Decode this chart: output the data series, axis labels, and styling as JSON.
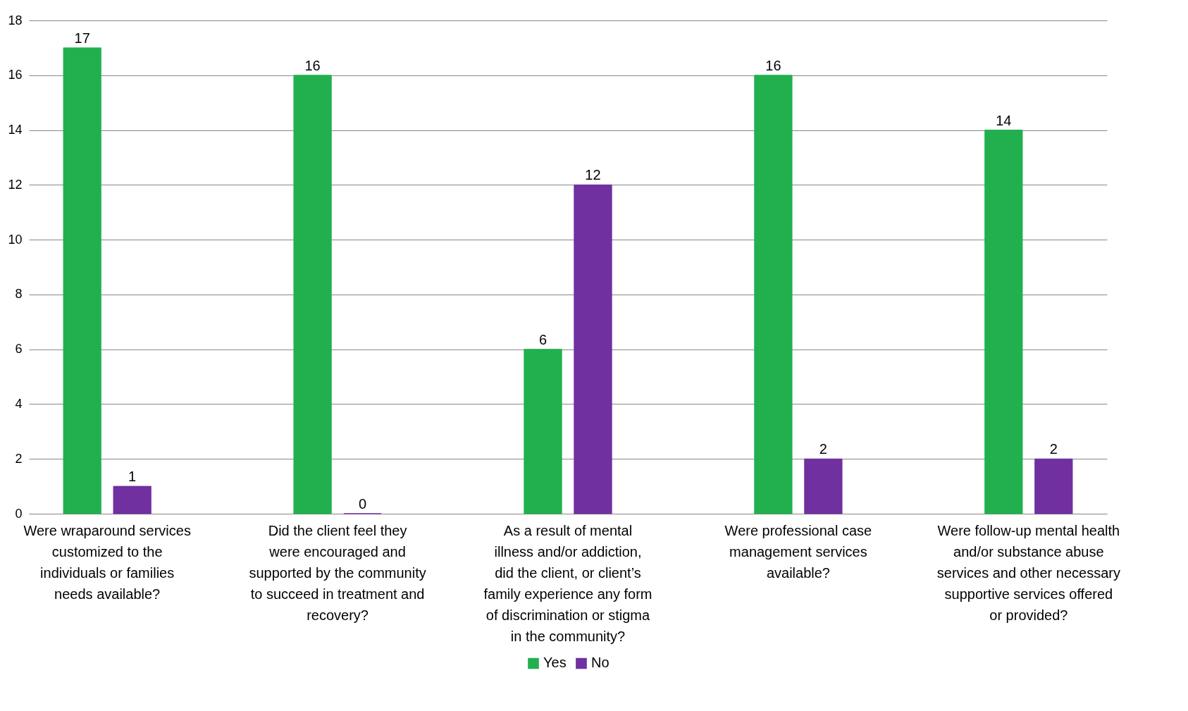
{
  "chart_data": {
    "type": "bar",
    "categories": [
      "Were wraparound services customized to the individuals or families needs available?",
      "Did the client feel they were encouraged and supported by the community to succeed in treatment and recovery?",
      "As a result of mental illness and/or addiction, did the client, or client’s family experience any form of discrimination or stigma in the community?",
      "Were professional case management services available?",
      "Were follow-up mental health and/or substance abuse services and other necessary supportive services offered or provided?"
    ],
    "series": [
      {
        "name": "Yes",
        "color": "#22b04f",
        "values": [
          17,
          16,
          6,
          16,
          14
        ]
      },
      {
        "name": "No",
        "color": "#7030a0",
        "values": [
          1,
          0,
          12,
          2,
          2
        ]
      }
    ],
    "ylim": [
      0,
      18
    ],
    "yticks": [
      0,
      2,
      4,
      6,
      8,
      10,
      12,
      14,
      16,
      18
    ],
    "grid": "y",
    "legend": "bottom",
    "data_labels": true
  }
}
